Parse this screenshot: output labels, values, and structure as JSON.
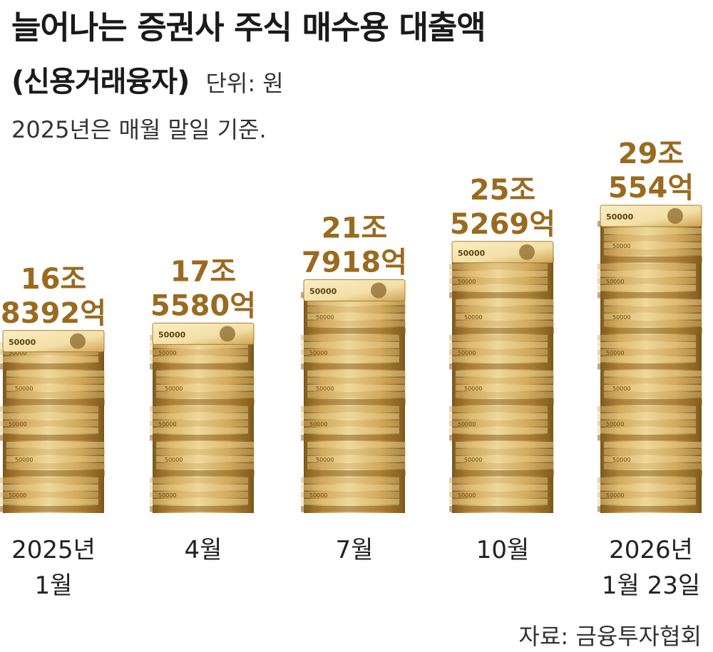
{
  "header": {
    "title": "늘어나는 증권사 주식 매수용 대출액",
    "subtitle": "(신용거래융자)",
    "unit": "단위: 원",
    "note": "2025년은 매월 말일 기준."
  },
  "source": "자료: 금융투자협회",
  "colors": {
    "value_label": "#9a6a1f",
    "money_light": "#f3dfa6",
    "money_mid": "#cfa455",
    "money_dark": "#7a5518",
    "text": "#222222"
  },
  "chart_data": {
    "type": "bar",
    "bar_style": "stacked banknote bundles",
    "categories": [
      "2025년 1월",
      "4월",
      "7월",
      "10월",
      "2026년 1월 23일"
    ],
    "category_lines": [
      [
        "2025년",
        "1월"
      ],
      [
        "4월"
      ],
      [
        "7월"
      ],
      [
        "10월"
      ],
      [
        "2026년",
        "1월 23일"
      ]
    ],
    "values_eok": [
      168392,
      175580,
      217918,
      255269,
      290554
    ],
    "value_labels": [
      [
        "16조",
        "8392억"
      ],
      [
        "17조",
        "5580억"
      ],
      [
        "21조",
        "7918억"
      ],
      [
        "25조",
        "5269억"
      ],
      [
        "29조",
        "554억"
      ]
    ],
    "banknote_label": "50000",
    "ylabel": "",
    "xlabel": ""
  }
}
